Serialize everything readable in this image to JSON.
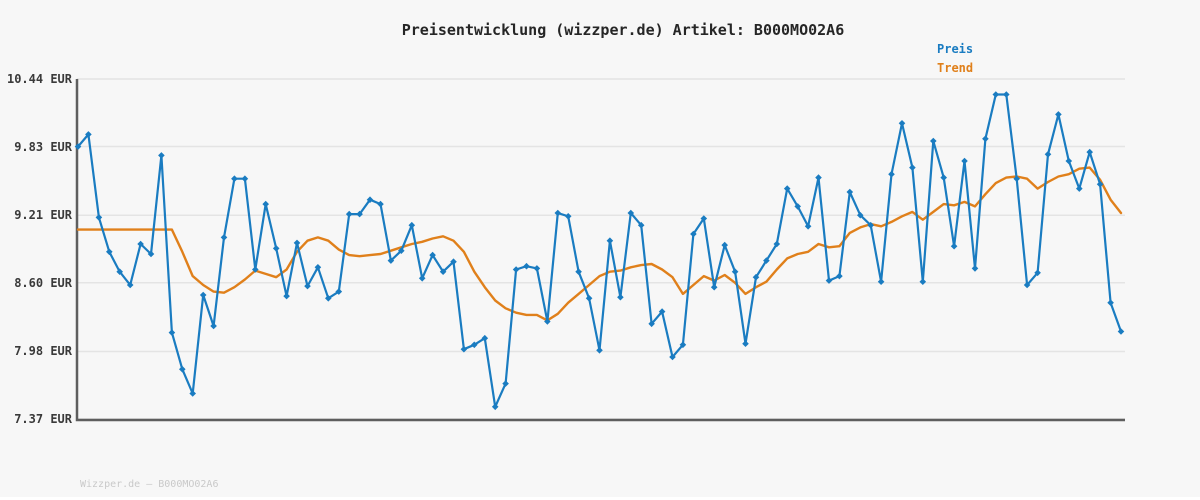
{
  "header": {
    "title": "Preisentwicklung (wizzper.de) Artikel: B000MO02A6"
  },
  "legend": {
    "items": [
      {
        "label": "Preis",
        "color": "#1a7cc1"
      },
      {
        "label": "Trend",
        "color": "#e0801b"
      }
    ]
  },
  "footer": {
    "text": "Wizzper.de — B000MO02A6"
  },
  "chart_data": {
    "type": "line",
    "title": "Preisentwicklung (wizzper.de) Artikel: B000MO02A6",
    "ylabel": "EUR",
    "ylim": [
      7.37,
      10.44
    ],
    "grid": "horizontal",
    "legend_position": "top-right",
    "y_ticks": [
      {
        "label": "10.44 EUR",
        "value": 10.44
      },
      {
        "label": "9.83 EUR",
        "value": 9.83
      },
      {
        "label": "9.21 EUR",
        "value": 9.21
      },
      {
        "label": "8.60 EUR",
        "value": 8.6
      },
      {
        "label": "7.98 EUR",
        "value": 7.98
      },
      {
        "label": "7.37 EUR",
        "value": 7.37
      }
    ],
    "style": {
      "grid_color": "#e4e4e4",
      "axis_color": "#5e5e5e",
      "background": "#f7f7f7"
    },
    "series": [
      {
        "name": "Preis",
        "color": "#1a7cc1",
        "marker": "diamond",
        "values": [
          9.83,
          9.94,
          9.19,
          8.88,
          8.7,
          8.58,
          8.95,
          8.86,
          9.75,
          8.15,
          7.82,
          7.6,
          8.49,
          8.21,
          9.01,
          9.54,
          9.54,
          8.72,
          9.31,
          8.91,
          8.48,
          8.96,
          8.57,
          8.74,
          8.46,
          8.52,
          9.22,
          9.22,
          9.35,
          9.31,
          8.8,
          8.89,
          9.12,
          8.64,
          8.85,
          8.7,
          8.79,
          8.0,
          8.04,
          8.1,
          7.48,
          7.69,
          8.72,
          8.75,
          8.73,
          8.25,
          9.23,
          9.2,
          8.7,
          8.46,
          7.99,
          8.98,
          8.47,
          9.23,
          9.12,
          8.23,
          8.34,
          7.93,
          8.04,
          9.04,
          9.18,
          8.56,
          8.94,
          8.7,
          8.05,
          8.65,
          8.8,
          8.95,
          9.45,
          9.29,
          9.11,
          9.55,
          8.62,
          8.66,
          9.42,
          9.21,
          9.12,
          8.61,
          9.58,
          10.04,
          9.64,
          8.61,
          9.88,
          9.55,
          8.93,
          9.7,
          8.73,
          9.9,
          10.3,
          10.3,
          9.54,
          8.58,
          8.69,
          9.76,
          10.12,
          9.7,
          9.45,
          9.78,
          9.49,
          8.42,
          8.16
        ]
      },
      {
        "name": "Trend",
        "color": "#e0801b",
        "marker": "none",
        "values": [
          9.08,
          9.08,
          9.08,
          9.08,
          9.08,
          9.08,
          9.08,
          9.08,
          9.08,
          9.08,
          8.88,
          8.66,
          8.58,
          8.52,
          8.51,
          8.56,
          8.63,
          8.71,
          8.68,
          8.65,
          8.72,
          8.88,
          8.98,
          9.01,
          8.98,
          8.9,
          8.85,
          8.84,
          8.85,
          8.86,
          8.89,
          8.92,
          8.95,
          8.97,
          9.0,
          9.02,
          8.98,
          8.88,
          8.7,
          8.56,
          8.44,
          8.37,
          8.33,
          8.31,
          8.31,
          8.26,
          8.32,
          8.42,
          8.5,
          8.58,
          8.66,
          8.7,
          8.71,
          8.74,
          8.76,
          8.77,
          8.72,
          8.65,
          8.5,
          8.58,
          8.66,
          8.62,
          8.67,
          8.6,
          8.5,
          8.56,
          8.61,
          8.72,
          8.82,
          8.86,
          8.88,
          8.95,
          8.92,
          8.93,
          9.05,
          9.1,
          9.13,
          9.11,
          9.15,
          9.2,
          9.24,
          9.17,
          9.24,
          9.31,
          9.3,
          9.33,
          9.29,
          9.4,
          9.5,
          9.55,
          9.56,
          9.54,
          9.45,
          9.51,
          9.56,
          9.58,
          9.63,
          9.64,
          9.53,
          9.35,
          9.23
        ]
      }
    ]
  }
}
